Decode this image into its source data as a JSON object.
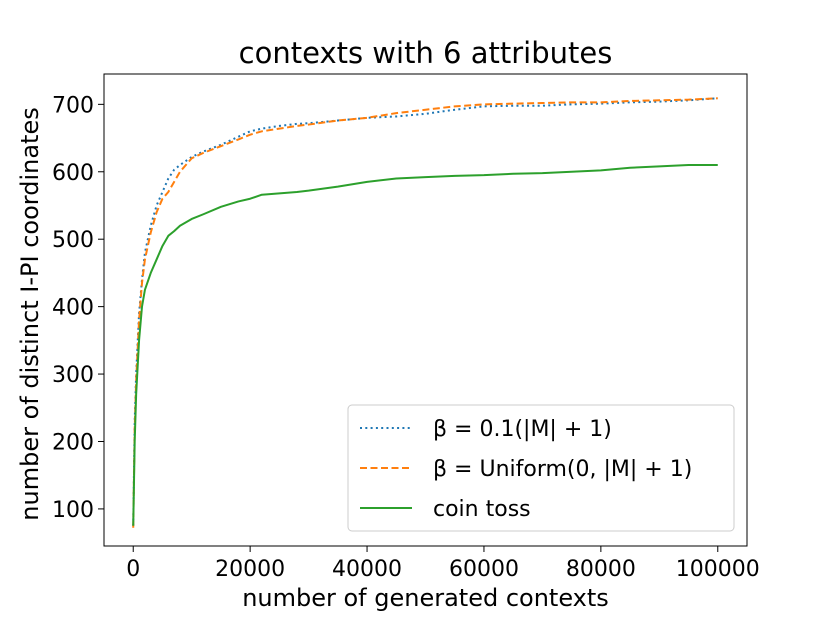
{
  "chart_data": {
    "type": "line",
    "title": "contexts with 6 attributes",
    "xlabel": "number of generated contexts",
    "ylabel": "number of distinct I-PI coordinates",
    "xlim": [
      -5000,
      105000
    ],
    "ylim": [
      45,
      745
    ],
    "xticks": [
      0,
      20000,
      40000,
      60000,
      80000,
      100000
    ],
    "xtick_labels": [
      "0",
      "20000",
      "40000",
      "60000",
      "80000",
      "100000"
    ],
    "yticks": [
      100,
      200,
      300,
      400,
      500,
      600,
      700
    ],
    "ytick_labels": [
      "100",
      "200",
      "300",
      "400",
      "500",
      "600",
      "700"
    ],
    "grid": false,
    "legend_position": "lower-right",
    "series": [
      {
        "name": "β = 0.1(|M| + 1)",
        "color": "#1f77b4",
        "linestyle": "dotted",
        "x": [
          0,
          250,
          500,
          1000,
          1500,
          2000,
          3000,
          4000,
          5000,
          6000,
          7000,
          8000,
          10000,
          12000,
          15000,
          18000,
          20000,
          22000,
          25000,
          28000,
          30000,
          35000,
          40000,
          45000,
          50000,
          55000,
          60000,
          65000,
          70000,
          75000,
          80000,
          85000,
          90000,
          95000,
          100000
        ],
        "y": [
          75,
          230,
          300,
          390,
          440,
          480,
          520,
          550,
          570,
          590,
          603,
          610,
          622,
          630,
          640,
          652,
          660,
          664,
          668,
          671,
          672,
          676,
          680,
          682,
          686,
          692,
          697,
          698,
          698,
          700,
          701,
          703,
          704,
          706,
          709
        ]
      },
      {
        "name": "β = Uniform(0, |M| + 1)",
        "color": "#ff7f0e",
        "linestyle": "dashed",
        "x": [
          0,
          250,
          500,
          1000,
          1500,
          2000,
          3000,
          4000,
          5000,
          6000,
          7000,
          8000,
          10000,
          12000,
          15000,
          18000,
          20000,
          22000,
          25000,
          28000,
          30000,
          35000,
          40000,
          45000,
          50000,
          55000,
          60000,
          65000,
          70000,
          75000,
          80000,
          85000,
          90000,
          95000,
          100000
        ],
        "y": [
          72,
          220,
          290,
          380,
          435,
          470,
          510,
          540,
          560,
          570,
          585,
          600,
          620,
          628,
          638,
          648,
          655,
          660,
          664,
          668,
          670,
          676,
          680,
          687,
          692,
          697,
          700,
          701,
          702,
          703,
          703,
          705,
          706,
          707,
          709
        ]
      },
      {
        "name": "coin toss",
        "color": "#2ca02c",
        "linestyle": "solid",
        "x": [
          0,
          250,
          500,
          1000,
          1500,
          2000,
          3000,
          4000,
          5000,
          6000,
          7000,
          8000,
          10000,
          12000,
          15000,
          18000,
          20000,
          22000,
          25000,
          28000,
          30000,
          35000,
          40000,
          45000,
          50000,
          55000,
          60000,
          65000,
          70000,
          75000,
          80000,
          85000,
          90000,
          95000,
          100000
        ],
        "y": [
          75,
          200,
          270,
          350,
          400,
          425,
          450,
          470,
          490,
          505,
          512,
          520,
          530,
          537,
          548,
          556,
          560,
          566,
          568,
          570,
          572,
          578,
          585,
          590,
          592,
          594,
          595,
          597,
          598,
          600,
          602,
          606,
          608,
          610,
          610
        ]
      }
    ]
  }
}
